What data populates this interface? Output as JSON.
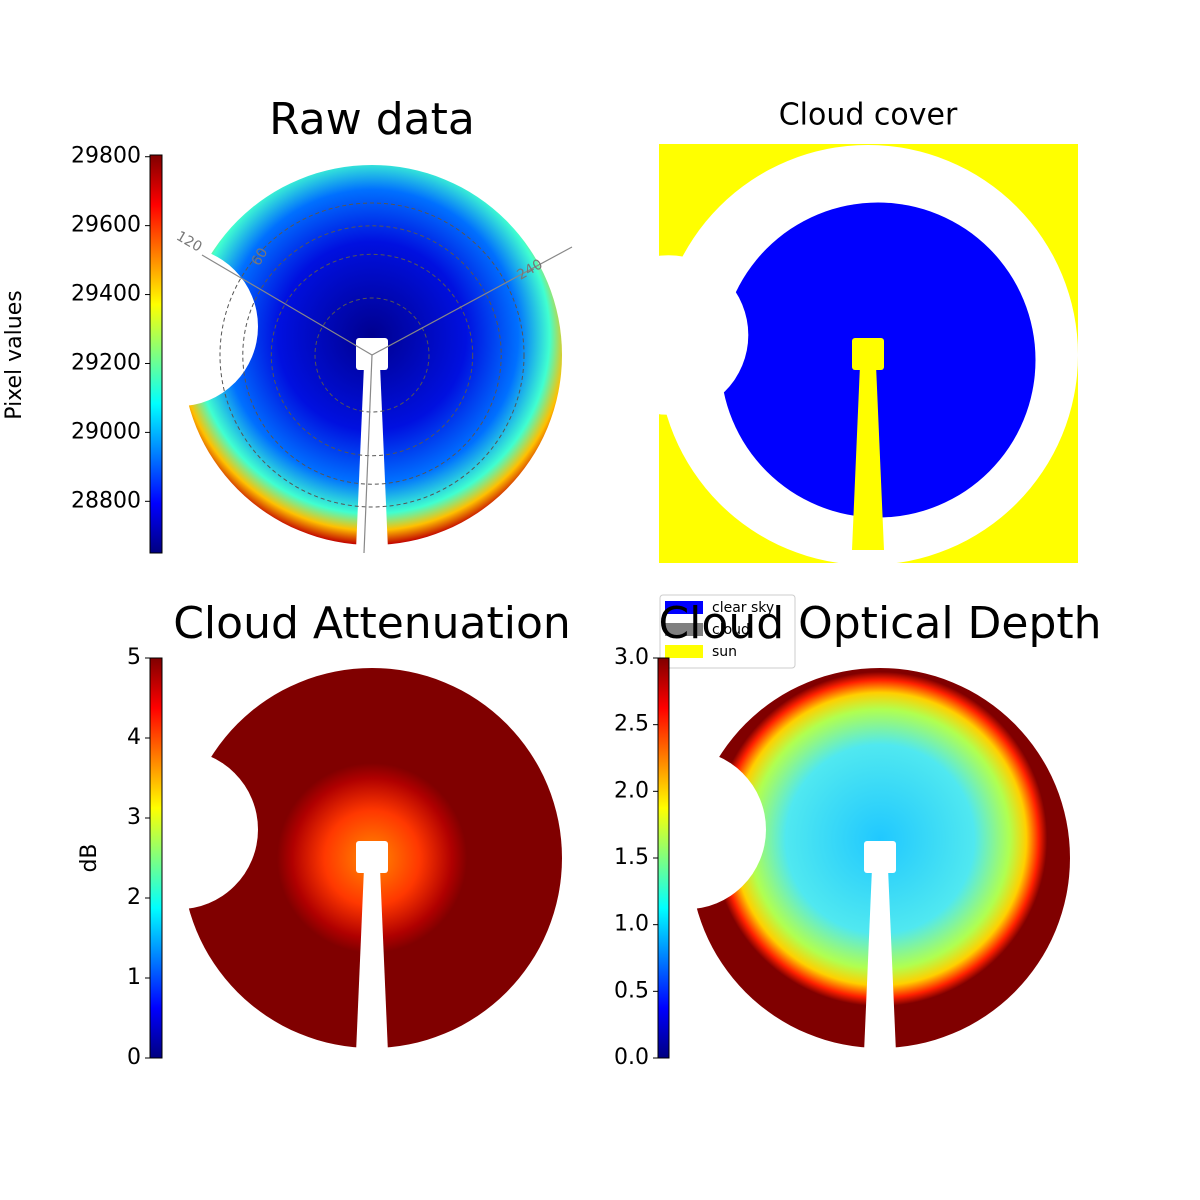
{
  "chart_data": [
    {
      "type": "image",
      "title": "Raw data",
      "colorbar": {
        "label": "Pixel values",
        "clim": [
          28650,
          29805
        ],
        "ticks": [
          28800,
          29000,
          29200,
          29400,
          29600,
          29800
        ]
      },
      "annotations": [
        "120",
        "60",
        "240"
      ]
    },
    {
      "type": "image",
      "title": "Cloud cover",
      "series": [
        {
          "name": "clear sky",
          "color": "#0000ff"
        },
        {
          "name": "cloud",
          "color": "#808080"
        },
        {
          "name": "sun",
          "color": "#ffff00"
        }
      ],
      "legend": "lower left"
    },
    {
      "type": "image",
      "title": "Cloud Attenuation",
      "colorbar": {
        "label": "dB",
        "clim": [
          0,
          5
        ],
        "ticks": [
          0,
          1,
          2,
          3,
          4,
          5
        ]
      }
    },
    {
      "type": "image",
      "title": "Cloud Optical Depth",
      "colorbar": {
        "clim": [
          0,
          3
        ],
        "ticks": [
          {
            "value": 0,
            "label": "0.0"
          },
          {
            "value": 0.5,
            "label": "0.5"
          },
          {
            "value": 1,
            "label": "1.0"
          },
          {
            "value": 1.5,
            "label": "1.5"
          },
          {
            "value": 2,
            "label": "2.0"
          },
          {
            "value": 2.5,
            "label": "2.5"
          },
          {
            "value": 3,
            "label": "3.0"
          }
        ]
      }
    }
  ]
}
